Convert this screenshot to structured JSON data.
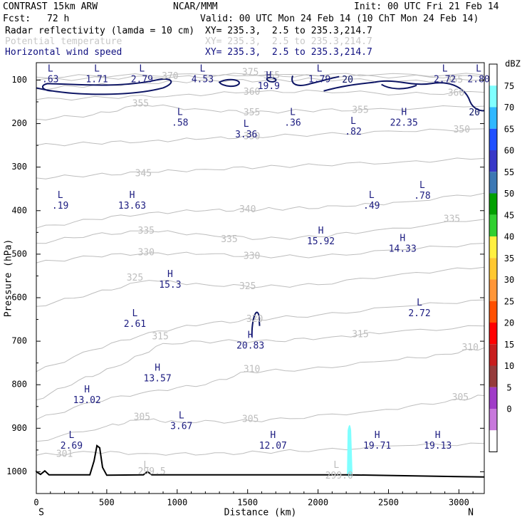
{
  "header": {
    "model": "CONTRAST 15km ARW",
    "org": "NCAR/MMM",
    "init": "Init: 00 UTC Fri 21 Feb 14",
    "fcst_label": "Fcst:",
    "fcst_value": "72 h",
    "valid": "Valid: 00 UTC Mon 24 Feb 14 (10 ChT Mon 24 Feb 14)",
    "fields": [
      {
        "name": "Radar reflectivity (lamda = 10 cm)",
        "xy": "XY= 235.3,  2.5 to 235.3,214.7",
        "color": "#000000"
      },
      {
        "name": "Potential temperature",
        "xy": "XY= 235.3,  2.5 to 235.3,214.7",
        "color": "#c8c8c8"
      },
      {
        "name": "Horizontal wind speed",
        "xy": "XY= 235.3,  2.5 to 235.3,214.7",
        "color": "#101080"
      }
    ]
  },
  "chart_data": {
    "type": "cross-section contour",
    "xlabel": "Distance (km)",
    "ylabel": "Pressure (hPa)",
    "xlim": [
      0,
      3180
    ],
    "ylim": [
      1050,
      60
    ],
    "x_ticks": [
      0,
      500,
      1000,
      1500,
      2000,
      2500,
      3000
    ],
    "y_ticks": [
      100,
      200,
      300,
      400,
      500,
      600,
      700,
      800,
      900,
      1000
    ],
    "left_end": "S",
    "right_end": "N",
    "theta_labels": [
      {
        "text": "375",
        "x": 1520,
        "p": 83
      },
      {
        "text": "370",
        "x": 950,
        "p": 92
      },
      {
        "text": "365",
        "x": 1670,
        "p": 90
      },
      {
        "text": "360",
        "x": 1530,
        "p": 128
      },
      {
        "text": "360",
        "x": 2980,
        "p": 130
      },
      {
        "text": "365",
        "x": 2970,
        "p": 100
      },
      {
        "text": "355",
        "x": 740,
        "p": 155
      },
      {
        "text": "355",
        "x": 1530,
        "p": 175
      },
      {
        "text": "355",
        "x": 2300,
        "p": 170
      },
      {
        "text": "350",
        "x": 1530,
        "p": 230
      },
      {
        "text": "350",
        "x": 3020,
        "p": 215
      },
      {
        "text": "345",
        "x": 760,
        "p": 315
      },
      {
        "text": "340",
        "x": 1500,
        "p": 398
      },
      {
        "text": "335",
        "x": 780,
        "p": 447
      },
      {
        "text": "335",
        "x": 1370,
        "p": 467
      },
      {
        "text": "335",
        "x": 2950,
        "p": 420
      },
      {
        "text": "330",
        "x": 780,
        "p": 497
      },
      {
        "text": "330",
        "x": 1530,
        "p": 505
      },
      {
        "text": "325",
        "x": 700,
        "p": 555
      },
      {
        "text": "325",
        "x": 1500,
        "p": 575
      },
      {
        "text": "320",
        "x": 1550,
        "p": 650
      },
      {
        "text": "315",
        "x": 880,
        "p": 690
      },
      {
        "text": "315",
        "x": 2300,
        "p": 685
      },
      {
        "text": "310",
        "x": 1530,
        "p": 765
      },
      {
        "text": "310",
        "x": 3080,
        "p": 715
      },
      {
        "text": "305",
        "x": 750,
        "p": 875
      },
      {
        "text": "305",
        "x": 1520,
        "p": 880
      },
      {
        "text": "305",
        "x": 3010,
        "p": 830
      },
      {
        "text": "301",
        "x": 200,
        "p": 960
      },
      {
        "text": "299.5",
        "x": 820,
        "p": 1000
      },
      {
        "text": "299.0",
        "x": 2150,
        "p": 1010
      }
    ],
    "theta_lows": [
      {
        "x": 780,
        "p": 985
      },
      {
        "x": 2130,
        "p": 985
      }
    ],
    "wind_extrema": [
      {
        "kind": "L",
        "value": ".63",
        "x": 100,
        "p": 88
      },
      {
        "kind": "L",
        "value": "1.71",
        "x": 430,
        "p": 88
      },
      {
        "kind": "L",
        "value": "2.79",
        "x": 750,
        "p": 88
      },
      {
        "kind": "L",
        "value": "4.53",
        "x": 1180,
        "p": 88
      },
      {
        "kind": "H",
        "value": "19.9",
        "x": 1650,
        "p": 103
      },
      {
        "kind": "L",
        "value": "1.79",
        "x": 2010,
        "p": 88
      },
      {
        "kind": "L",
        "value": "2.72",
        "x": 2900,
        "p": 88
      },
      {
        "kind": "L",
        "value": "2.80",
        "x": 3140,
        "p": 88
      },
      {
        "kind": "L",
        "value": ".58",
        "x": 1020,
        "p": 188
      },
      {
        "kind": "L",
        "value": ".36",
        "x": 1820,
        "p": 188
      },
      {
        "kind": "H",
        "value": "22.35",
        "x": 2610,
        "p": 188
      },
      {
        "kind": "L",
        "value": "3.36",
        "x": 1490,
        "p": 215
      },
      {
        "kind": "L",
        "value": ".82",
        "x": 2250,
        "p": 208
      },
      {
        "kind": "L",
        "value": ".19",
        "x": 170,
        "p": 378
      },
      {
        "kind": "H",
        "value": "13.63",
        "x": 680,
        "p": 378
      },
      {
        "kind": "L",
        "value": ".49",
        "x": 2380,
        "p": 378
      },
      {
        "kind": "L",
        "value": ".78",
        "x": 2740,
        "p": 355
      },
      {
        "kind": "H",
        "value": "15.92",
        "x": 2020,
        "p": 460
      },
      {
        "kind": "H",
        "value": "14.33",
        "x": 2600,
        "p": 477
      },
      {
        "kind": "H",
        "value": "15.3",
        "x": 950,
        "p": 560
      },
      {
        "kind": "L",
        "value": "2.72",
        "x": 2720,
        "p": 625
      },
      {
        "kind": "L",
        "value": "2.61",
        "x": 700,
        "p": 650
      },
      {
        "kind": "H",
        "value": "20.83",
        "x": 1520,
        "p": 700
      },
      {
        "kind": "H",
        "value": "13.57",
        "x": 860,
        "p": 775
      },
      {
        "kind": "H",
        "value": "13.02",
        "x": 360,
        "p": 825
      },
      {
        "kind": "L",
        "value": "3.67",
        "x": 1030,
        "p": 885
      },
      {
        "kind": "L",
        "value": "2.69",
        "x": 250,
        "p": 930
      },
      {
        "kind": "H",
        "value": "12.07",
        "x": 1680,
        "p": 930
      },
      {
        "kind": "H",
        "value": "19.71",
        "x": 2420,
        "p": 930
      },
      {
        "kind": "H",
        "value": "19.13",
        "x": 2850,
        "p": 930
      }
    ],
    "wind_contour_labels": [
      {
        "text": "20",
        "x": 2210,
        "p": 100
      },
      {
        "text": "20",
        "x": 3110,
        "p": 175
      }
    ],
    "colorbar": {
      "unit": "dBZ",
      "ticks": [
        0,
        5,
        10,
        15,
        20,
        25,
        30,
        35,
        40,
        45,
        50,
        55,
        60,
        65,
        70,
        75
      ],
      "colors": [
        "#ffffff",
        "#80ffff",
        "#30b8ff",
        "#2050ff",
        "#3838c8",
        "#3c78b4",
        "#00a000",
        "#30d030",
        "#fff040",
        "#ffc830",
        "#ff9638",
        "#ff5000",
        "#ff0000",
        "#c81e1e",
        "#963c3c",
        "#a03cc8",
        "#c878dc",
        "#ffffff"
      ]
    }
  }
}
